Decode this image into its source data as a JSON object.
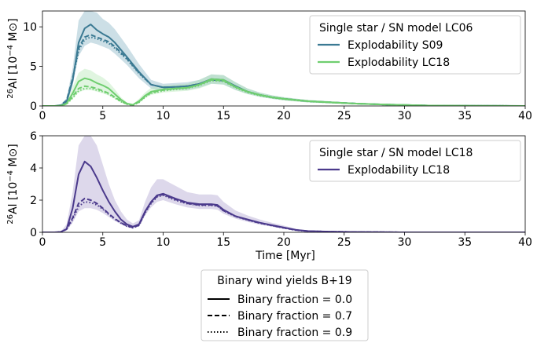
{
  "chart_data": [
    {
      "type": "line",
      "panel": "top",
      "xlabel": "",
      "ylabel": "26Al [10−4 M⊙]",
      "ylabel_parts": {
        "sup": "26",
        "main": "Al [10",
        "exp": "−4",
        "unit": " M⊙]"
      },
      "xlim": [
        0,
        40
      ],
      "ylim": [
        0,
        12
      ],
      "xticks": [
        "0",
        "5",
        "10",
        "15",
        "20",
        "25",
        "30",
        "35",
        "40"
      ],
      "yticks": [
        "0",
        "5",
        "10"
      ],
      "ytick_values": [
        0,
        5,
        10
      ],
      "legend": {
        "placement": "top-right",
        "title": "Single star / SN model LC06",
        "entries": [
          {
            "label": "Explodability S09",
            "color": "#3b7a93"
          },
          {
            "label": "Explodability LC18",
            "color": "#6fce6f"
          }
        ]
      },
      "series": [
        {
          "name": "Explodability S09",
          "color": "#3b7a93",
          "band_color": "#6ea3b8",
          "x": [
            0,
            1,
            1.5,
            2,
            2.5,
            3,
            3.5,
            4,
            4.5,
            5,
            5.5,
            6,
            7,
            8,
            9,
            10,
            11,
            12,
            13,
            14,
            15,
            16,
            17,
            18,
            19,
            20,
            22,
            24,
            26,
            28,
            30,
            32,
            35,
            40
          ],
          "solid": [
            0,
            0,
            0.05,
            0.5,
            3.2,
            8.0,
            9.8,
            10.3,
            9.6,
            9.1,
            8.7,
            8.0,
            6.2,
            4.3,
            2.7,
            2.35,
            2.4,
            2.5,
            2.8,
            3.4,
            3.3,
            2.5,
            1.8,
            1.4,
            1.1,
            0.9,
            0.6,
            0.45,
            0.3,
            0.2,
            0.12,
            0.05,
            0.02,
            0.0
          ],
          "dashed": [
            0,
            0,
            0.1,
            0.7,
            3.5,
            7.3,
            8.7,
            9.0,
            8.7,
            8.4,
            8.1,
            7.5,
            6.0,
            4.2,
            2.7,
            2.35,
            2.4,
            2.5,
            2.8,
            3.3,
            3.2,
            2.4,
            1.8,
            1.4,
            1.1,
            0.9,
            0.6,
            0.45,
            0.3,
            0.2,
            0.12,
            0.05,
            0.02,
            0.0
          ],
          "dotted": [
            0,
            0,
            0.05,
            0.6,
            3.4,
            7.0,
            8.4,
            8.7,
            8.5,
            8.2,
            7.9,
            7.3,
            5.9,
            4.1,
            2.7,
            2.35,
            2.4,
            2.5,
            2.8,
            3.3,
            3.2,
            2.4,
            1.8,
            1.4,
            1.1,
            0.9,
            0.6,
            0.45,
            0.3,
            0.2,
            0.12,
            0.05,
            0.02,
            0.0
          ],
          "band_lo": [
            0,
            0,
            0.03,
            0.4,
            2.6,
            6.3,
            7.6,
            8.0,
            7.8,
            7.5,
            7.2,
            6.6,
            5.2,
            3.5,
            2.2,
            1.9,
            2.0,
            2.0,
            2.3,
            2.8,
            2.7,
            2.0,
            1.5,
            1.15,
            0.9,
            0.7,
            0.45,
            0.33,
            0.22,
            0.14,
            0.08,
            0.03,
            0.01,
            0.0
          ],
          "band_hi": [
            0,
            0,
            0.08,
            1.0,
            4.8,
            10.8,
            12.5,
            12.5,
            11.8,
            11.0,
            10.5,
            9.7,
            7.6,
            5.3,
            3.3,
            2.8,
            2.9,
            3.0,
            3.3,
            4.0,
            3.9,
            3.0,
            2.2,
            1.7,
            1.35,
            1.1,
            0.75,
            0.58,
            0.4,
            0.27,
            0.17,
            0.08,
            0.03,
            0.0
          ]
        },
        {
          "name": "Explodability LC18",
          "color": "#6fce6f",
          "band_color": "#a5e2a5",
          "x": [
            0,
            1,
            1.5,
            2,
            2.5,
            3,
            3.5,
            4,
            4.5,
            5,
            5.5,
            6,
            6.5,
            7,
            7.5,
            8,
            8.5,
            9,
            10,
            11,
            12,
            13,
            14,
            15,
            16,
            17,
            18,
            19,
            20,
            22,
            24,
            26,
            28,
            30,
            32,
            35,
            40
          ],
          "solid": [
            0,
            0,
            0.03,
            0.3,
            1.6,
            3.1,
            3.5,
            3.3,
            2.9,
            2.6,
            2.2,
            1.5,
            0.8,
            0.3,
            0.15,
            0.6,
            1.3,
            1.8,
            2.1,
            2.2,
            2.3,
            2.7,
            3.4,
            3.3,
            2.4,
            1.8,
            1.4,
            1.1,
            0.9,
            0.6,
            0.45,
            0.3,
            0.2,
            0.12,
            0.05,
            0.02,
            0.0
          ],
          "dashed": [
            0,
            0,
            0.03,
            0.3,
            1.2,
            2.2,
            2.5,
            2.4,
            2.2,
            1.9,
            1.6,
            1.1,
            0.6,
            0.25,
            0.12,
            0.5,
            1.2,
            1.7,
            2.0,
            2.2,
            2.3,
            2.7,
            3.3,
            3.2,
            2.4,
            1.8,
            1.4,
            1.1,
            0.9,
            0.6,
            0.45,
            0.3,
            0.2,
            0.12,
            0.05,
            0.02,
            0.0
          ],
          "dotted": [
            0,
            0,
            0.02,
            0.25,
            1.0,
            1.9,
            2.2,
            2.2,
            2.0,
            1.8,
            1.5,
            1.0,
            0.55,
            0.22,
            0.1,
            0.45,
            1.1,
            1.6,
            1.9,
            2.1,
            2.2,
            2.6,
            3.2,
            3.1,
            2.3,
            1.7,
            1.3,
            1.05,
            0.85,
            0.57,
            0.43,
            0.29,
            0.19,
            0.11,
            0.05,
            0.02,
            0.0
          ],
          "band_lo": [
            0,
            0,
            0.01,
            0.2,
            0.9,
            1.7,
            2.0,
            2.0,
            1.8,
            1.6,
            1.3,
            0.9,
            0.45,
            0.18,
            0.08,
            0.4,
            1.0,
            1.4,
            1.7,
            1.8,
            1.9,
            2.2,
            2.8,
            2.7,
            2.0,
            1.5,
            1.15,
            0.9,
            0.7,
            0.45,
            0.33,
            0.22,
            0.14,
            0.08,
            0.03,
            0.01,
            0.0
          ],
          "band_hi": [
            0,
            0,
            0.05,
            0.5,
            2.4,
            4.2,
            4.7,
            4.5,
            4.0,
            3.6,
            3.0,
            2.1,
            1.1,
            0.45,
            0.25,
            0.9,
            1.7,
            2.3,
            2.6,
            2.7,
            2.8,
            3.3,
            4.0,
            3.9,
            3.0,
            2.2,
            1.7,
            1.35,
            1.1,
            0.75,
            0.58,
            0.4,
            0.27,
            0.17,
            0.08,
            0.03,
            0.0
          ]
        }
      ]
    },
    {
      "type": "line",
      "panel": "bottom",
      "xlabel": "Time [Myr]",
      "ylabel": "26Al [10−4 M⊙]",
      "ylabel_parts": {
        "sup": "26",
        "main": "Al [10",
        "exp": "−4",
        "unit": " M⊙]"
      },
      "xlim": [
        0,
        40
      ],
      "ylim": [
        0,
        6
      ],
      "xticks": [
        "0",
        "5",
        "10",
        "15",
        "20",
        "25",
        "30",
        "35",
        "40"
      ],
      "yticks": [
        "0",
        "2",
        "4",
        "6"
      ],
      "ytick_values": [
        0,
        2,
        4,
        6
      ],
      "legend": {
        "placement": "top-right",
        "title": "Single star / SN model LC18",
        "entries": [
          {
            "label": "Explodability LC18",
            "color": "#4b3a8c"
          }
        ]
      },
      "series": [
        {
          "name": "Explodability LC18",
          "color": "#4b3a8c",
          "band_color": "#9d8fc6",
          "x": [
            0,
            1,
            1.5,
            2,
            2.5,
            3,
            3.5,
            4,
            4.5,
            5,
            5.5,
            6,
            6.5,
            7,
            7.5,
            8,
            8.5,
            9,
            9.5,
            10,
            11,
            12,
            13,
            14,
            14.5,
            15,
            16,
            17,
            18,
            19,
            20,
            21,
            22,
            24,
            26,
            28,
            30,
            32,
            35,
            40
          ],
          "solid": [
            0,
            0,
            0.02,
            0.2,
            1.5,
            3.6,
            4.4,
            4.1,
            3.4,
            2.6,
            1.9,
            1.3,
            0.8,
            0.5,
            0.35,
            0.5,
            1.3,
            1.9,
            2.3,
            2.4,
            2.1,
            1.85,
            1.75,
            1.75,
            1.7,
            1.4,
            1.0,
            0.8,
            0.6,
            0.45,
            0.3,
            0.15,
            0.08,
            0.04,
            0.02,
            0.01,
            0.0,
            0.0,
            0.0,
            0.0
          ],
          "dashed": [
            0,
            0,
            0.02,
            0.2,
            0.9,
            1.8,
            2.1,
            2.0,
            1.8,
            1.5,
            1.15,
            0.85,
            0.6,
            0.4,
            0.3,
            0.45,
            1.25,
            1.85,
            2.25,
            2.35,
            2.05,
            1.8,
            1.7,
            1.7,
            1.65,
            1.35,
            1.0,
            0.78,
            0.58,
            0.43,
            0.28,
            0.14,
            0.07,
            0.04,
            0.02,
            0.01,
            0.0,
            0.0,
            0.0,
            0.0
          ],
          "dotted": [
            0,
            0,
            0.02,
            0.18,
            0.8,
            1.6,
            1.9,
            1.85,
            1.7,
            1.45,
            1.1,
            0.82,
            0.58,
            0.38,
            0.28,
            0.43,
            1.2,
            1.8,
            2.2,
            2.3,
            2.0,
            1.78,
            1.68,
            1.68,
            1.63,
            1.33,
            0.98,
            0.76,
            0.57,
            0.42,
            0.27,
            0.13,
            0.07,
            0.04,
            0.02,
            0.01,
            0.0,
            0.0,
            0.0,
            0.0
          ],
          "band_lo": [
            0,
            0,
            0.01,
            0.1,
            0.6,
            1.3,
            1.5,
            1.5,
            1.4,
            1.2,
            0.95,
            0.7,
            0.5,
            0.33,
            0.25,
            0.38,
            1.05,
            1.55,
            1.9,
            2.0,
            1.75,
            1.55,
            1.45,
            1.45,
            1.4,
            1.15,
            0.85,
            0.65,
            0.48,
            0.35,
            0.22,
            0.1,
            0.05,
            0.025,
            0.01,
            0.005,
            0.0,
            0.0,
            0.0,
            0.0
          ],
          "band_hi": [
            0,
            0,
            0.04,
            0.5,
            2.5,
            5.4,
            6.4,
            6.4,
            5.4,
            4.2,
            3.0,
            2.0,
            1.3,
            0.8,
            0.55,
            0.75,
            1.9,
            2.8,
            3.3,
            3.3,
            2.9,
            2.5,
            2.35,
            2.35,
            2.3,
            1.9,
            1.35,
            1.05,
            0.8,
            0.6,
            0.42,
            0.22,
            0.12,
            0.06,
            0.03,
            0.015,
            0.0,
            0.0,
            0.0,
            0.0
          ]
        }
      ]
    }
  ],
  "figure_legend": {
    "title": "Binary wind yields B+19",
    "entries": [
      {
        "label": "Binary fraction = 0.0",
        "style": "solid"
      },
      {
        "label": "Binary fraction = 0.7",
        "style": "dashed"
      },
      {
        "label": "Binary fraction = 0.9",
        "style": "dotted"
      }
    ]
  }
}
